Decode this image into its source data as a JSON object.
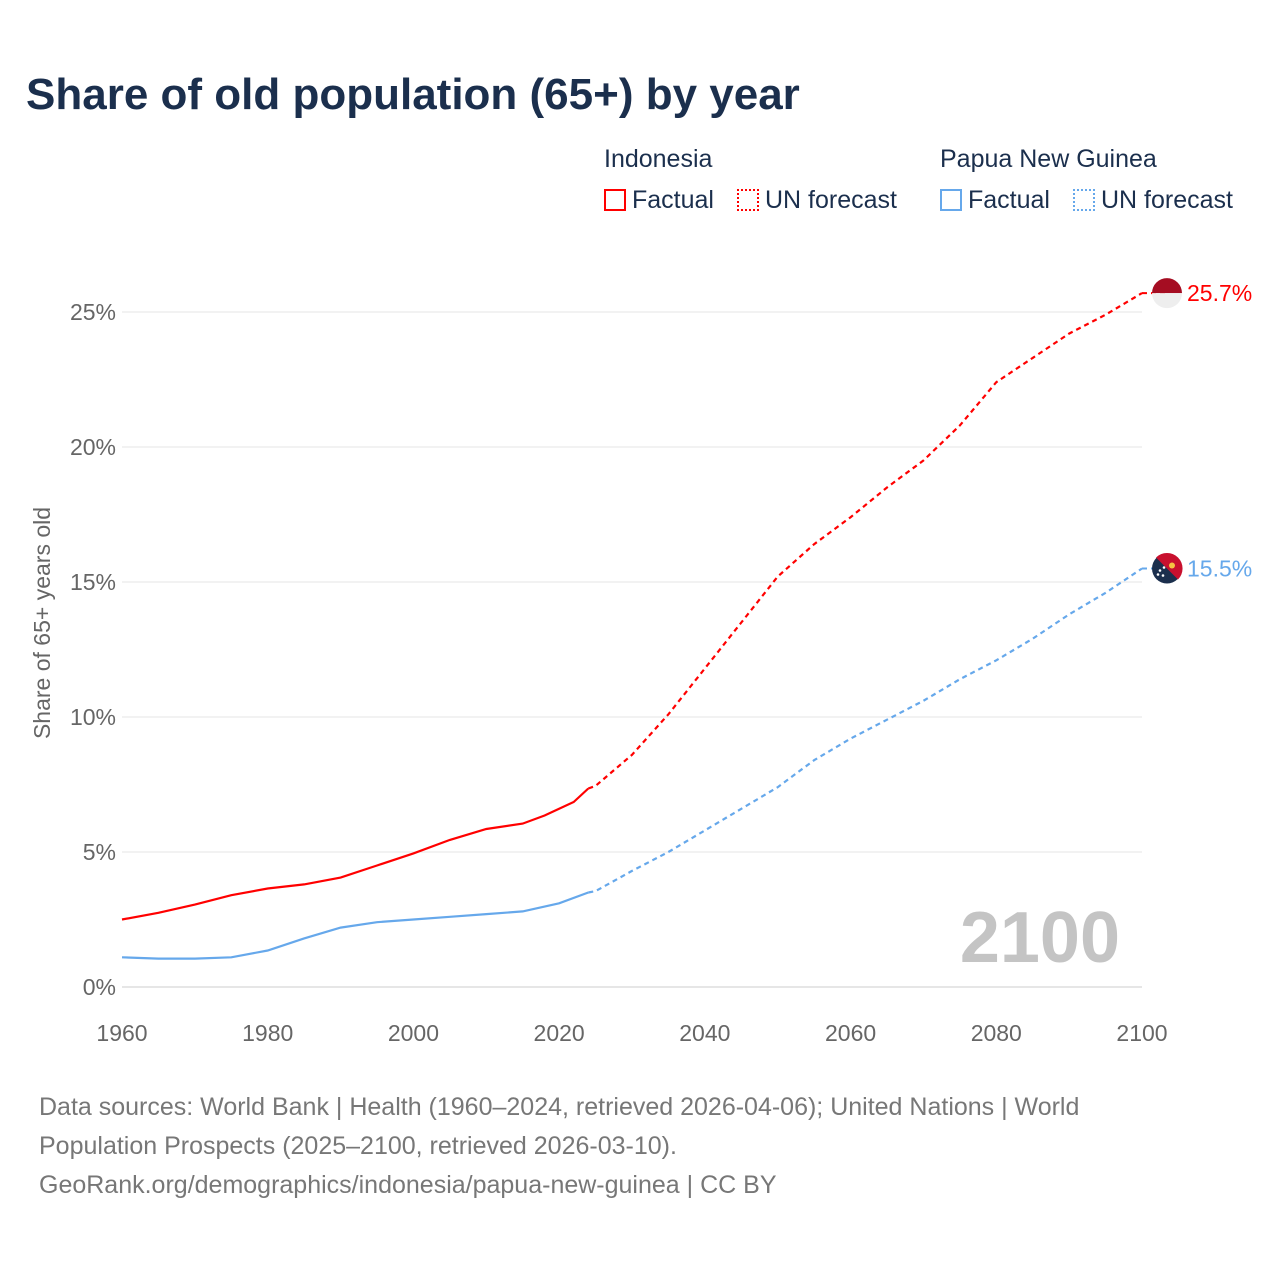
{
  "title": "Share of old population (65+) by year",
  "legend": {
    "groups": [
      {
        "country": "Indonesia",
        "factual": "Factual",
        "forecast": "UN forecast",
        "color": "#ff0000"
      },
      {
        "country": "Papua New Guinea",
        "factual": "Factual",
        "forecast": "UN forecast",
        "color": "#66a8eb"
      }
    ]
  },
  "year_label": "2100",
  "source": {
    "line1": "Data sources: World Bank | Health (1960–2024, retrieved 2026-04-06); United Nations | World Population Prospects (2025–2100, retrieved 2026-03-10).",
    "line2": "GeoRank.org/demographics/indonesia/papua-new-guinea | CC BY"
  },
  "chart_data": {
    "type": "line",
    "title": "Share of old population (65+) by year",
    "xlabel": "",
    "ylabel": "Share of 65+ years old",
    "xlim": [
      1960,
      2100
    ],
    "ylim": [
      0,
      27
    ],
    "xticks": [
      "1960",
      "1980",
      "2000",
      "2020",
      "2040",
      "2060",
      "2080",
      "2100"
    ],
    "yticks": [
      "0%",
      "5%",
      "10%",
      "15%",
      "20%",
      "25%"
    ],
    "grid": true,
    "series": [
      {
        "name": "Indonesia Factual",
        "color": "#ff0000",
        "dashed": false,
        "x": [
          1960,
          1965,
          1970,
          1975,
          1980,
          1985,
          1990,
          1995,
          2000,
          2005,
          2010,
          2015,
          2018,
          2020,
          2022,
          2024
        ],
        "y": [
          2.5,
          2.75,
          3.05,
          3.4,
          3.65,
          3.8,
          4.05,
          4.5,
          4.95,
          5.45,
          5.85,
          6.05,
          6.35,
          6.6,
          6.85,
          7.35
        ]
      },
      {
        "name": "Indonesia UN forecast",
        "color": "#ff0000",
        "dashed": true,
        "x": [
          2024,
          2025,
          2030,
          2035,
          2040,
          2045,
          2050,
          2055,
          2060,
          2065,
          2070,
          2075,
          2080,
          2085,
          2090,
          2095,
          2100
        ],
        "y": [
          7.35,
          7.45,
          8.6,
          10.1,
          11.8,
          13.5,
          15.2,
          16.4,
          17.4,
          18.5,
          19.5,
          20.8,
          22.4,
          23.3,
          24.2,
          24.9,
          25.7
        ]
      },
      {
        "name": "Papua New Guinea Factual",
        "color": "#66a8eb",
        "dashed": false,
        "x": [
          1960,
          1965,
          1970,
          1975,
          1980,
          1985,
          1990,
          1995,
          2000,
          2005,
          2010,
          2015,
          2020,
          2024
        ],
        "y": [
          1.1,
          1.05,
          1.05,
          1.1,
          1.35,
          1.8,
          2.2,
          2.4,
          2.5,
          2.6,
          2.7,
          2.8,
          3.1,
          3.5
        ]
      },
      {
        "name": "Papua New Guinea UN forecast",
        "color": "#66a8eb",
        "dashed": true,
        "x": [
          2024,
          2025,
          2030,
          2035,
          2040,
          2045,
          2050,
          2055,
          2060,
          2065,
          2070,
          2075,
          2080,
          2085,
          2090,
          2095,
          2100
        ],
        "y": [
          3.5,
          3.55,
          4.3,
          5.0,
          5.8,
          6.6,
          7.4,
          8.4,
          9.2,
          9.9,
          10.6,
          11.4,
          12.1,
          12.9,
          13.8,
          14.6,
          15.5
        ]
      }
    ],
    "end_labels": [
      {
        "text": "25.7%",
        "color": "#ff0000"
      },
      {
        "text": "15.5%",
        "color": "#66a8eb"
      }
    ]
  }
}
